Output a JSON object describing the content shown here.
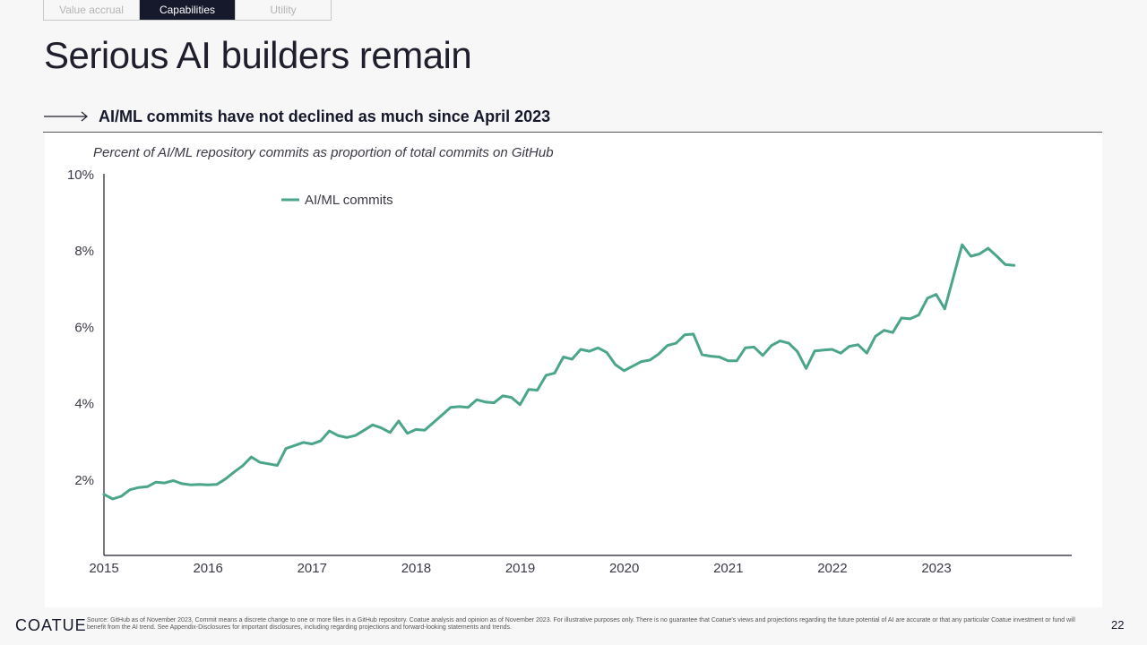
{
  "tabs": [
    {
      "label": "Value accrual",
      "active": false
    },
    {
      "label": "Capabilities",
      "active": true
    },
    {
      "label": "Utility",
      "active": false
    }
  ],
  "title": "Serious AI builders remain",
  "subhead": "AI/ML commits have not declined as much since April 2023",
  "chart_subtitle": "Percent of AI/ML repository commits as proportion of total commits on GitHub",
  "colors": {
    "series": "#4aa58a",
    "axis": "#1e1e2c",
    "text": "#1e1e2c"
  },
  "chart_data": {
    "type": "line",
    "title": "Percent of AI/ML repository commits as proportion of total commits on GitHub",
    "xlabel": "",
    "ylabel": "",
    "xlim": [
      2015.0,
      2024.3
    ],
    "ylim": [
      0,
      10
    ],
    "x_ticks": [
      2015,
      2016,
      2017,
      2018,
      2019,
      2020,
      2021,
      2022,
      2023
    ],
    "x_tick_labels": [
      "2015",
      "2016",
      "2017",
      "2018",
      "2019",
      "2020",
      "2021",
      "2022",
      "2023"
    ],
    "y_ticks": [
      2,
      4,
      6,
      8,
      10
    ],
    "y_tick_labels": [
      "2%",
      "4%",
      "6%",
      "8%",
      "10%"
    ],
    "legend": "top-left",
    "grid": false,
    "series": [
      {
        "name": "AI/ML commits",
        "start": 2015.0,
        "step": 0.0833,
        "values": [
          1.6,
          1.48,
          1.55,
          1.72,
          1.78,
          1.8,
          1.92,
          1.9,
          1.96,
          1.88,
          1.85,
          1.86,
          1.85,
          1.86,
          2.0,
          2.18,
          2.35,
          2.58,
          2.44,
          2.4,
          2.36,
          2.8,
          2.88,
          2.96,
          2.92,
          3.0,
          3.26,
          3.14,
          3.09,
          3.14,
          3.28,
          3.42,
          3.34,
          3.22,
          3.52,
          3.2,
          3.3,
          3.28,
          3.48,
          3.68,
          3.88,
          3.9,
          3.88,
          4.08,
          4.02,
          4.0,
          4.18,
          4.14,
          3.95,
          4.35,
          4.33,
          4.72,
          4.78,
          5.2,
          5.14,
          5.4,
          5.35,
          5.44,
          5.32,
          5.0,
          4.84,
          4.96,
          5.08,
          5.12,
          5.28,
          5.5,
          5.56,
          5.78,
          5.8,
          5.26,
          5.22,
          5.2,
          5.1,
          5.1,
          5.44,
          5.46,
          5.24,
          5.5,
          5.62,
          5.56,
          5.34,
          4.9,
          5.36,
          5.38,
          5.4,
          5.3,
          5.48,
          5.52,
          5.3,
          5.74,
          5.9,
          5.84,
          6.22,
          6.2,
          6.3,
          6.74,
          6.84,
          6.46,
          7.3,
          8.14,
          7.84,
          7.9,
          8.05,
          7.84,
          7.62,
          7.6
        ]
      }
    ]
  },
  "footer": {
    "logo": "COATUE",
    "source": "Source: GitHub as of November 2023, Commit means a discrete change to one or more files in a GitHub repository. Coatue analysis and opinion as of November 2023. For illustrative purposes only. There is no guarantee that Coatue's views and projections regarding the future potential of AI are accurate or that any particular Coatue investment or fund will benefit from the AI trend. See Appendix-Disclosures for important disclosures, including regarding projections and forward-looking statements and trends.",
    "page_number": "22"
  }
}
